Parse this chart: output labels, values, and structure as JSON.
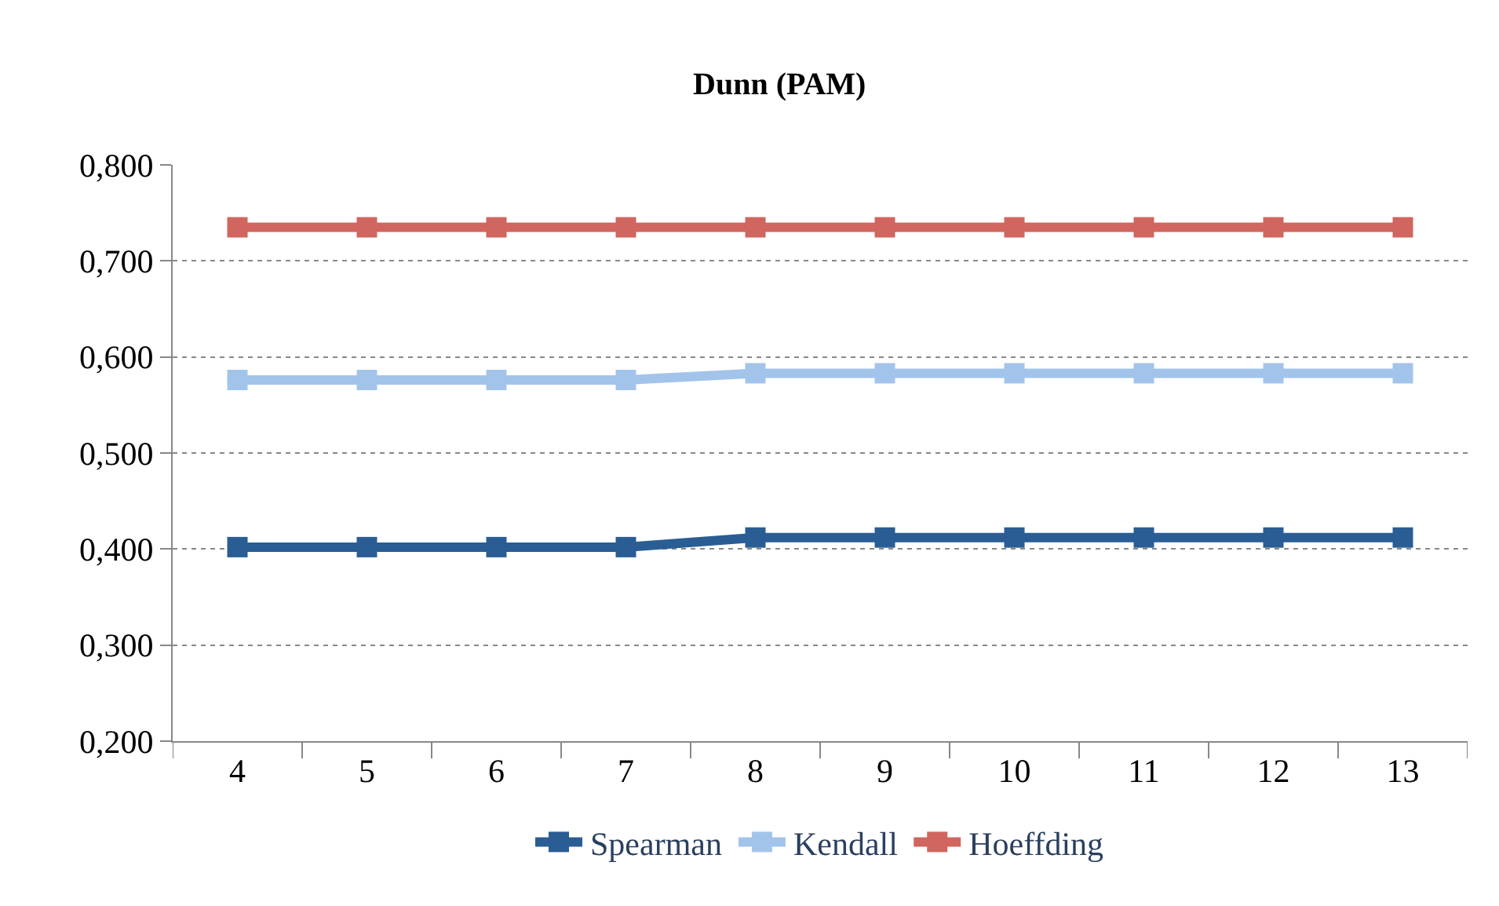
{
  "chart_data": {
    "type": "line",
    "title": "Dunn (PAM)",
    "categories": [
      "4",
      "5",
      "6",
      "7",
      "8",
      "9",
      "10",
      "11",
      "12",
      "13"
    ],
    "series": [
      {
        "name": "Spearman",
        "color": "#2a5d94",
        "values": [
          0.402,
          0.402,
          0.402,
          0.402,
          0.412,
          0.412,
          0.412,
          0.412,
          0.412,
          0.412
        ]
      },
      {
        "name": "Kendall",
        "color": "#a3c4ea",
        "values": [
          0.576,
          0.576,
          0.576,
          0.576,
          0.583,
          0.583,
          0.583,
          0.583,
          0.583,
          0.583
        ]
      },
      {
        "name": "Hoeffding",
        "color": "#d0665f",
        "values": [
          0.735,
          0.735,
          0.735,
          0.735,
          0.735,
          0.735,
          0.735,
          0.735,
          0.735,
          0.735
        ]
      }
    ],
    "ylim": [
      0.2,
      0.8
    ],
    "yticks": [
      {
        "value": 0.2,
        "label": "0,200"
      },
      {
        "value": 0.3,
        "label": "0,300"
      },
      {
        "value": 0.4,
        "label": "0,400"
      },
      {
        "value": 0.5,
        "label": "0,500"
      },
      {
        "value": 0.6,
        "label": "0,600"
      },
      {
        "value": 0.7,
        "label": "0,700"
      },
      {
        "value": 0.8,
        "label": "0,800"
      }
    ],
    "grid": "y",
    "legend": "bottom",
    "marker": "square",
    "line_style": "solid"
  }
}
